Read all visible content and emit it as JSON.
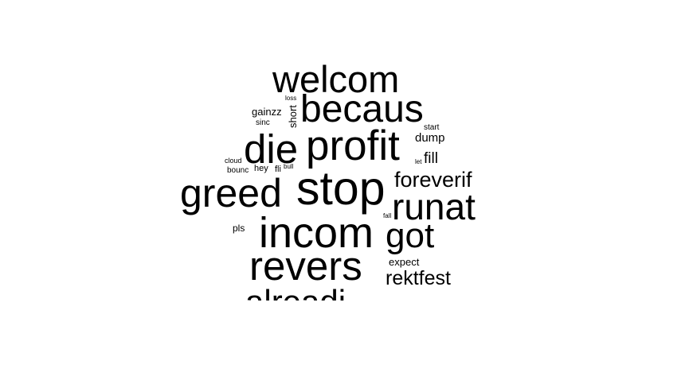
{
  "word_cloud": {
    "text_color": "#000000",
    "background_color": "#ffffff",
    "words": [
      "welcom",
      "becaus",
      "profit",
      "die",
      "stop",
      "greed",
      "runat",
      "foreverif",
      "incom",
      "got",
      "revers",
      "rektfest",
      "alreadi",
      "gainzz",
      "loss",
      "short",
      "sinc",
      "start",
      "dump",
      "fill",
      "let",
      "cloud",
      "bounc",
      "hey",
      "fli",
      "bull",
      "fall",
      "pls",
      "expect"
    ]
  }
}
